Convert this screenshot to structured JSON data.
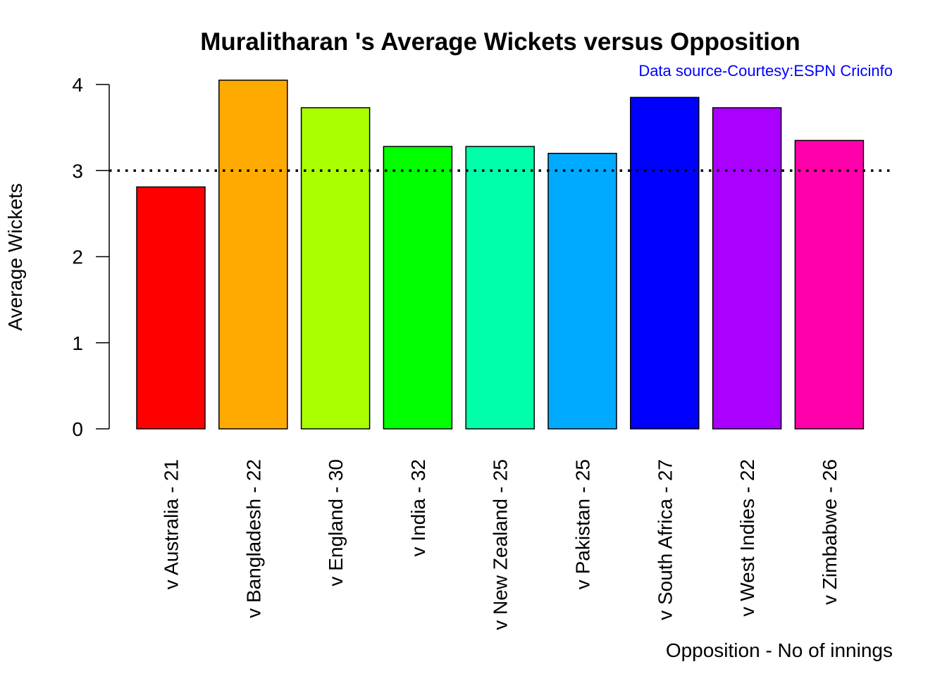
{
  "chart_data": {
    "type": "bar",
    "title": "Muralitharan 's Average Wickets versus Opposition",
    "subtitle": "Data source-Courtesy:ESPN Cricinfo",
    "xlabel": "Opposition - No of innings",
    "ylabel": "Average Wickets",
    "categories": [
      "v Australia - 21",
      "v Bangladesh - 22",
      "v England - 30",
      "v India - 32",
      "v New Zealand - 25",
      "v Pakistan - 25",
      "v South Africa - 27",
      "v West Indies - 22",
      "v Zimbabwe - 26"
    ],
    "values": [
      2.81,
      4.05,
      3.73,
      3.28,
      3.28,
      3.2,
      3.85,
      3.73,
      3.35
    ],
    "bar_colors": [
      "#FF0000",
      "#FFAA00",
      "#AAFF00",
      "#00FF00",
      "#00FFAA",
      "#00AAFF",
      "#0000FF",
      "#AA00FF",
      "#FF00AA"
    ],
    "reference_line": {
      "y": 3,
      "style": "dotted"
    },
    "ylim": [
      0,
      4
    ],
    "yticks": [
      "0",
      "1",
      "2",
      "3",
      "4"
    ],
    "subtitle_color": "#0000FF",
    "grid": false,
    "legend": "none"
  }
}
